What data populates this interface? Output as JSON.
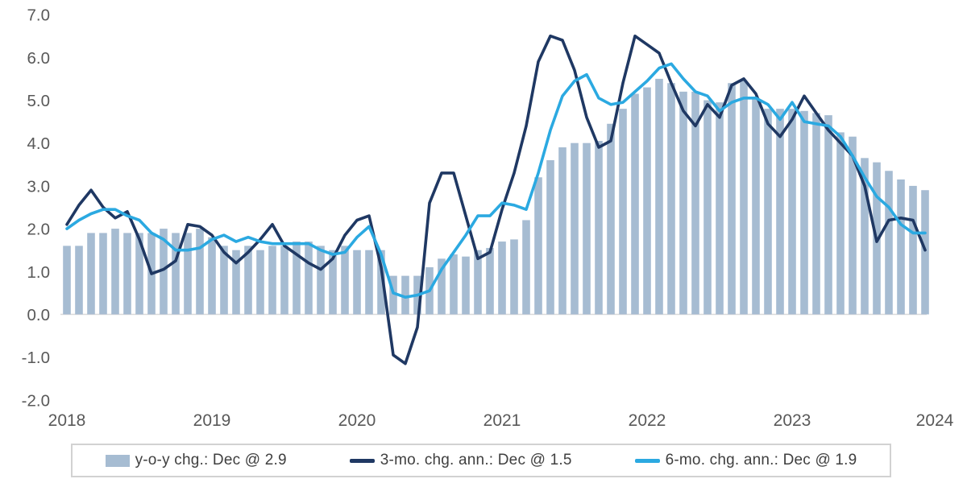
{
  "chart_data": {
    "type": "combo-bar-line",
    "title": "",
    "x_start": "2018-01",
    "x_end": "2023-12",
    "x_ticks": [
      "2018",
      "2019",
      "2020",
      "2021",
      "2022",
      "2023",
      "2024"
    ],
    "yticks": [
      "7.0",
      "6.0",
      "5.0",
      "4.0",
      "3.0",
      "2.0",
      "1.0",
      "0.0",
      "-1.0",
      "-2.0"
    ],
    "ylim": [
      -2.0,
      7.0
    ],
    "grid": "off",
    "legend_position": "bottom",
    "series": [
      {
        "name": "y-o-y chg.: Dec @ 2.9",
        "type": "bar",
        "color": "#A6BCD2",
        "values": [
          1.6,
          1.6,
          1.9,
          1.9,
          2.0,
          1.9,
          1.9,
          1.9,
          2.0,
          1.9,
          1.9,
          2.0,
          1.8,
          1.6,
          1.5,
          1.6,
          1.5,
          1.6,
          1.6,
          1.7,
          1.7,
          1.6,
          1.5,
          1.6,
          1.5,
          1.5,
          1.5,
          0.9,
          0.9,
          0.9,
          1.1,
          1.3,
          1.4,
          1.35,
          1.5,
          1.55,
          1.7,
          1.75,
          2.2,
          3.2,
          3.6,
          3.9,
          4.0,
          4.0,
          4.05,
          4.45,
          4.8,
          5.15,
          5.3,
          5.5,
          5.4,
          5.2,
          5.2,
          5.0,
          4.95,
          5.4,
          5.45,
          5.05,
          4.8,
          4.8,
          4.8,
          4.75,
          4.7,
          4.65,
          4.25,
          4.15,
          3.65,
          3.55,
          3.35,
          3.15,
          3.0,
          2.9
        ]
      },
      {
        "name": "3-mo. chg. ann.: Dec @ 1.5",
        "type": "line",
        "color": "#1F3863",
        "values": [
          2.1,
          2.55,
          2.9,
          2.5,
          2.25,
          2.4,
          1.75,
          0.95,
          1.05,
          1.25,
          2.1,
          2.05,
          1.85,
          1.45,
          1.2,
          1.45,
          1.75,
          2.1,
          1.6,
          1.4,
          1.2,
          1.05,
          1.3,
          1.85,
          2.2,
          2.3,
          1.1,
          -0.95,
          -1.15,
          -0.3,
          2.6,
          3.3,
          3.3,
          2.3,
          1.3,
          1.45,
          2.45,
          3.3,
          4.4,
          5.9,
          6.5,
          6.4,
          5.7,
          4.6,
          3.9,
          4.05,
          5.4,
          6.5,
          6.3,
          6.1,
          5.4,
          4.75,
          4.4,
          4.9,
          4.6,
          5.35,
          5.5,
          5.15,
          4.45,
          4.15,
          4.55,
          5.1,
          4.7,
          4.3,
          4.0,
          3.7,
          3.0,
          1.7,
          2.2,
          2.25,
          2.2,
          1.5
        ]
      },
      {
        "name": "6-mo. chg. ann.: Dec @ 1.9",
        "type": "line",
        "color": "#2BA9E1",
        "values": [
          2.0,
          2.2,
          2.35,
          2.45,
          2.45,
          2.3,
          2.2,
          1.9,
          1.75,
          1.5,
          1.5,
          1.55,
          1.75,
          1.85,
          1.7,
          1.8,
          1.7,
          1.65,
          1.65,
          1.65,
          1.65,
          1.5,
          1.4,
          1.45,
          1.8,
          2.05,
          1.4,
          0.5,
          0.4,
          0.45,
          0.55,
          1.05,
          1.45,
          1.85,
          2.3,
          2.3,
          2.6,
          2.55,
          2.45,
          3.3,
          4.3,
          5.1,
          5.45,
          5.6,
          5.05,
          4.9,
          4.95,
          5.2,
          5.45,
          5.75,
          5.85,
          5.5,
          5.2,
          5.1,
          4.75,
          4.95,
          5.05,
          5.05,
          4.9,
          4.55,
          4.95,
          4.5,
          4.45,
          4.4,
          4.15,
          3.7,
          3.2,
          2.75,
          2.5,
          2.1,
          1.9,
          1.9
        ]
      }
    ],
    "colors": {
      "tick_label": "#595959",
      "zero_axis": "#d9d9d9",
      "legend_border": "#d2d2d2",
      "legend_text": "#3f3f3f",
      "background": "#ffffff"
    }
  },
  "legend": {
    "items": [
      {
        "label": "y-o-y chg.: Dec @ 2.9",
        "kind": "bar",
        "color": "#A6BCD2"
      },
      {
        "label": "3-mo. chg. ann.: Dec @ 1.5",
        "kind": "line",
        "color": "#1F3863"
      },
      {
        "label": "6-mo. chg. ann.: Dec @ 1.9",
        "kind": "line",
        "color": "#2BA9E1"
      }
    ]
  }
}
